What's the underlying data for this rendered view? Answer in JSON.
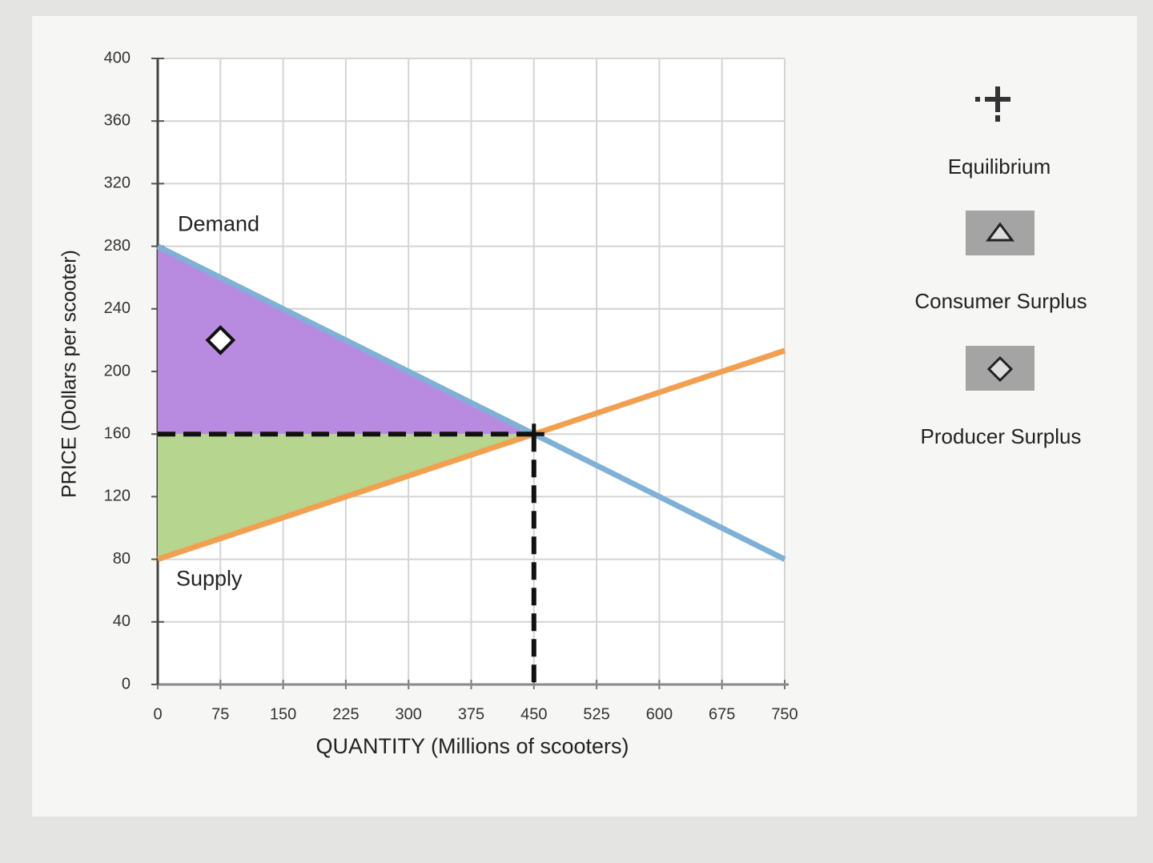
{
  "chart_data": {
    "type": "line",
    "x_label": "QUANTITY (Millions of scooters)",
    "y_label": "PRICE (Dollars per scooter)",
    "xlim": [
      0,
      750
    ],
    "ylim": [
      0,
      400
    ],
    "xticks": [
      0,
      75,
      150,
      225,
      300,
      375,
      450,
      525,
      600,
      675,
      750
    ],
    "yticks": [
      0,
      40,
      80,
      120,
      160,
      200,
      240,
      280,
      320,
      360,
      400
    ],
    "grid": true,
    "series": [
      {
        "name": "Demand",
        "color": "#7fb0d6",
        "x": [
          0,
          750
        ],
        "values": [
          280,
          80
        ]
      },
      {
        "name": "Supply",
        "color": "#f0a050",
        "x": [
          0,
          750
        ],
        "values": [
          80,
          213.3
        ]
      }
    ],
    "areas": [
      {
        "color": "#b98be0",
        "x": [
          0,
          450,
          0
        ],
        "values": [
          280,
          160,
          160
        ]
      },
      {
        "color": "#b6d68f",
        "x": [
          0,
          450,
          0
        ],
        "values": [
          160,
          160,
          80
        ]
      }
    ],
    "equilibrium": {
      "x": 450,
      "y": 160
    },
    "diamond_marker": {
      "x": 75,
      "y": 220
    },
    "tools": [
      "Equilibrium",
      "Consumer Surplus",
      "Producer Surplus"
    ]
  }
}
